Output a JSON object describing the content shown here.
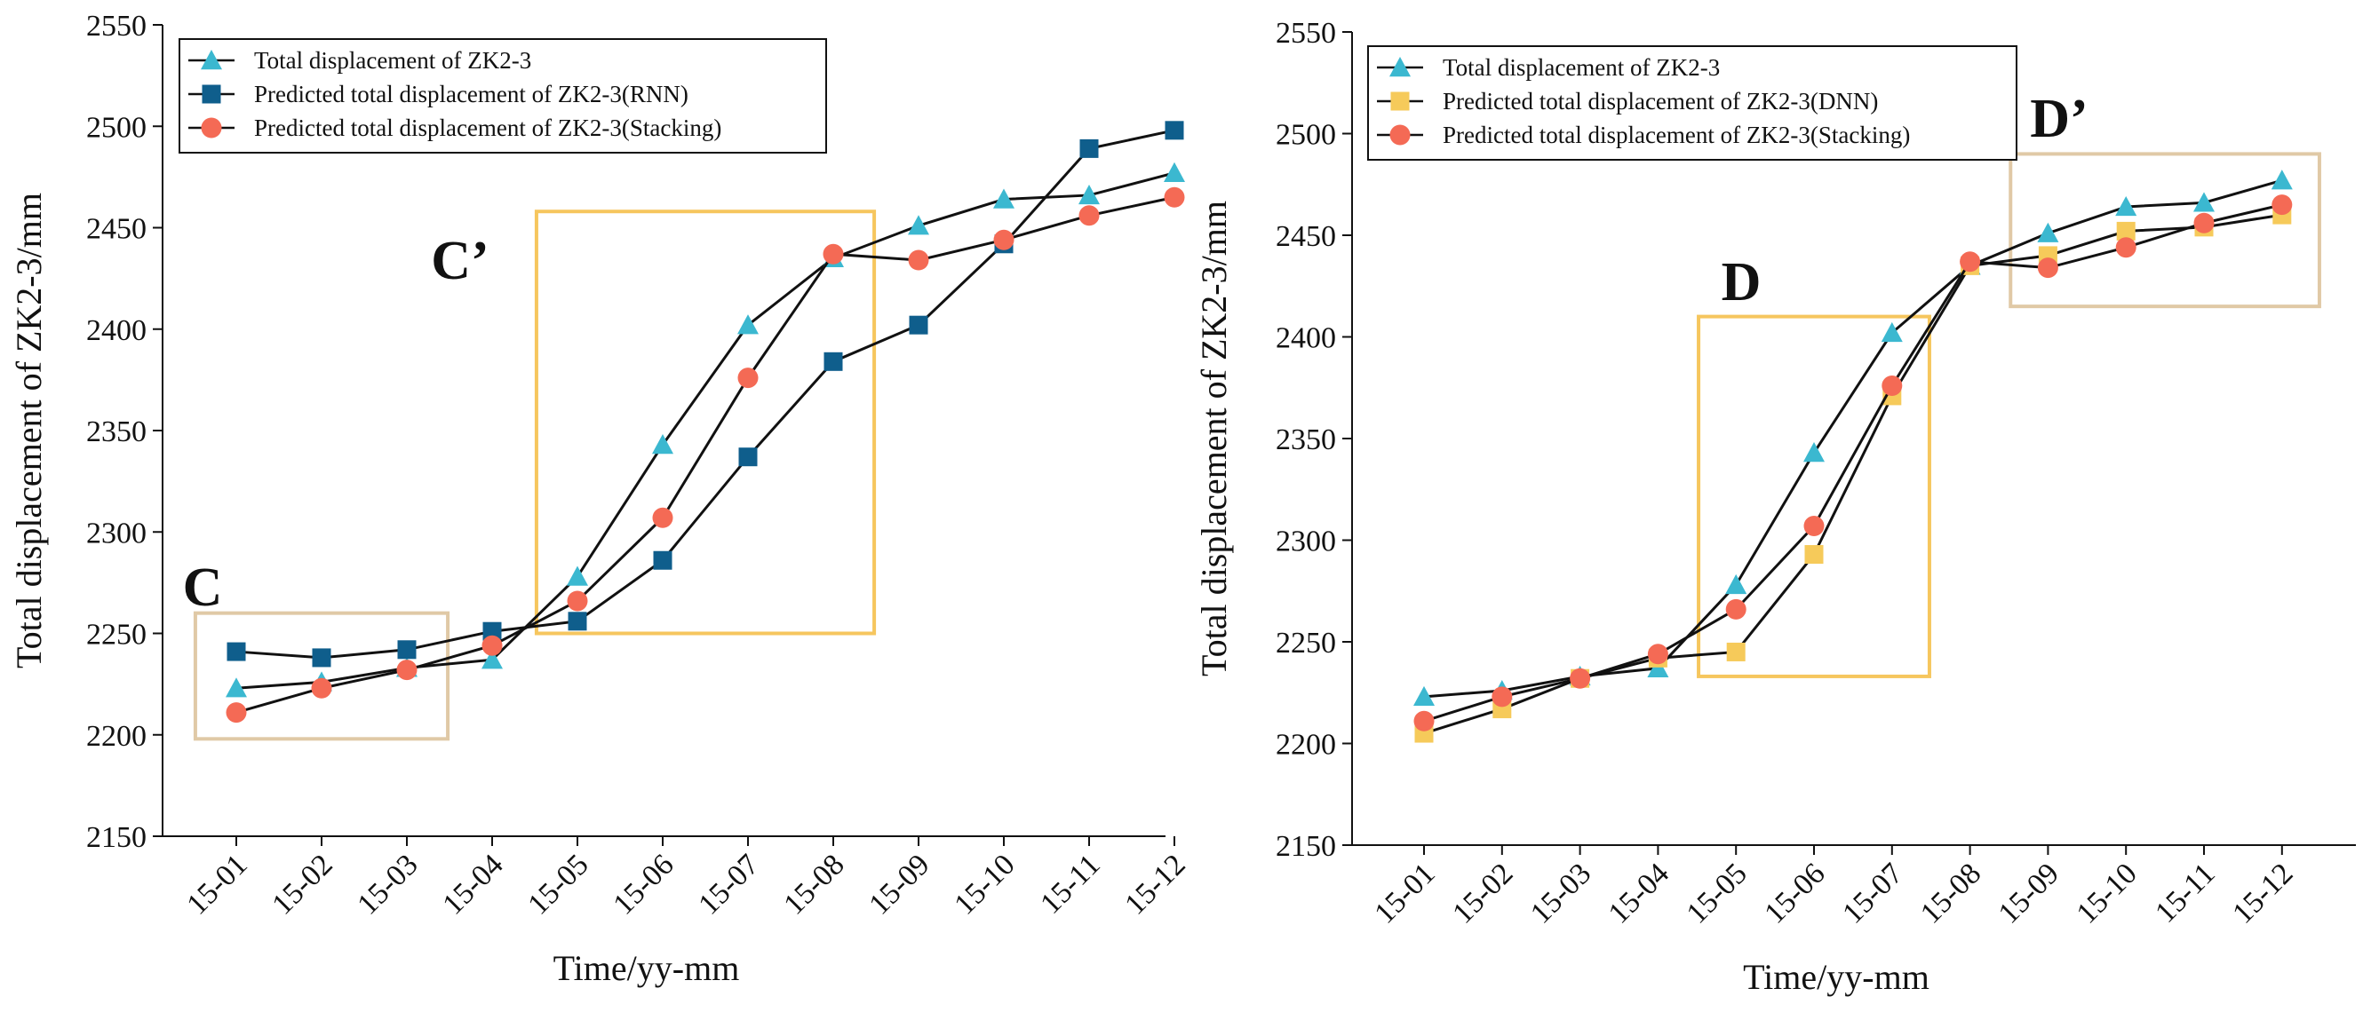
{
  "chart_data": [
    {
      "type": "line",
      "title": "",
      "xlabel": "Time/yy-mm",
      "ylabel": "Total displacement of ZK2-3/mm",
      "ylim": [
        2150,
        2550
      ],
      "yticks": [
        2150,
        2200,
        2250,
        2300,
        2350,
        2400,
        2450,
        2500,
        2550
      ],
      "categories": [
        "15-01",
        "15-02",
        "15-03",
        "15-04",
        "15-05",
        "15-06",
        "15-07",
        "15-08",
        "15-09",
        "15-10",
        "15-11",
        "15-12"
      ],
      "legend_position": "top-left",
      "series": [
        {
          "name": "Total displacement of ZK2-3",
          "marker": "triangle",
          "color": "#3bb8d0",
          "values": [
            2223,
            2226,
            2233,
            2237,
            2278,
            2343,
            2402,
            2435,
            2451,
            2464,
            2466,
            2477
          ]
        },
        {
          "name": "Predicted total displacement of ZK2-3(RNN)",
          "marker": "square",
          "color": "#0f5e8c",
          "values": [
            2241,
            2238,
            2242,
            2251,
            2256,
            2286,
            2337,
            2384,
            2402,
            2442,
            2489,
            2498
          ]
        },
        {
          "name": "Predicted total displacement of ZK2-3(Stacking)",
          "marker": "circle",
          "color": "#f46a55",
          "values": [
            2211,
            2223,
            2232,
            2244,
            2266,
            2307,
            2376,
            2437,
            2434,
            2444,
            2456,
            2465
          ]
        }
      ],
      "annotations": [
        {
          "label": "C",
          "color": "#e0c9a6",
          "x_range": [
            "15-01",
            "15-03"
          ],
          "y_range": [
            2198,
            2260
          ]
        },
        {
          "label": "C’",
          "color": "#f6c65e",
          "x_range": [
            "15-05",
            "15-08"
          ],
          "y_range": [
            2250,
            2458
          ]
        }
      ]
    },
    {
      "type": "line",
      "title": "",
      "xlabel": "Time/yy-mm",
      "ylabel": "Total displacement of ZK2-3/mm",
      "ylim": [
        2150,
        2550
      ],
      "yticks": [
        2150,
        2200,
        2250,
        2300,
        2350,
        2400,
        2450,
        2500,
        2550
      ],
      "categories": [
        "15-01",
        "15-02",
        "15-03",
        "15-04",
        "15-05",
        "15-06",
        "15-07",
        "15-08",
        "15-09",
        "15-10",
        "15-11",
        "15-12"
      ],
      "legend_position": "top-left",
      "series": [
        {
          "name": "Total displacement of ZK2-3",
          "marker": "triangle",
          "color": "#3bb8d0",
          "values": [
            2223,
            2226,
            2233,
            2237,
            2278,
            2343,
            2402,
            2435,
            2451,
            2464,
            2466,
            2477
          ]
        },
        {
          "name": "Predicted total displacement of ZK2-3(DNN)",
          "marker": "square",
          "color": "#f6ca5a",
          "values": [
            2205,
            2217,
            2232,
            2242,
            2245,
            2293,
            2371,
            2435,
            2440,
            2452,
            2454,
            2460
          ]
        },
        {
          "name": "Predicted total displacement of ZK2-3(Stacking)",
          "marker": "circle",
          "color": "#f46a55",
          "values": [
            2211,
            2223,
            2232,
            2244,
            2266,
            2307,
            2376,
            2437,
            2434,
            2444,
            2456,
            2465
          ]
        }
      ],
      "annotations": [
        {
          "label": "D",
          "color": "#f6c65e",
          "x_range": [
            "15-05",
            "15-07"
          ],
          "y_range": [
            2233,
            2410
          ]
        },
        {
          "label": "D’",
          "color": "#e0c9a6",
          "x_range": [
            "15-09",
            "15-12"
          ],
          "y_range": [
            2415,
            2490
          ]
        }
      ]
    }
  ]
}
